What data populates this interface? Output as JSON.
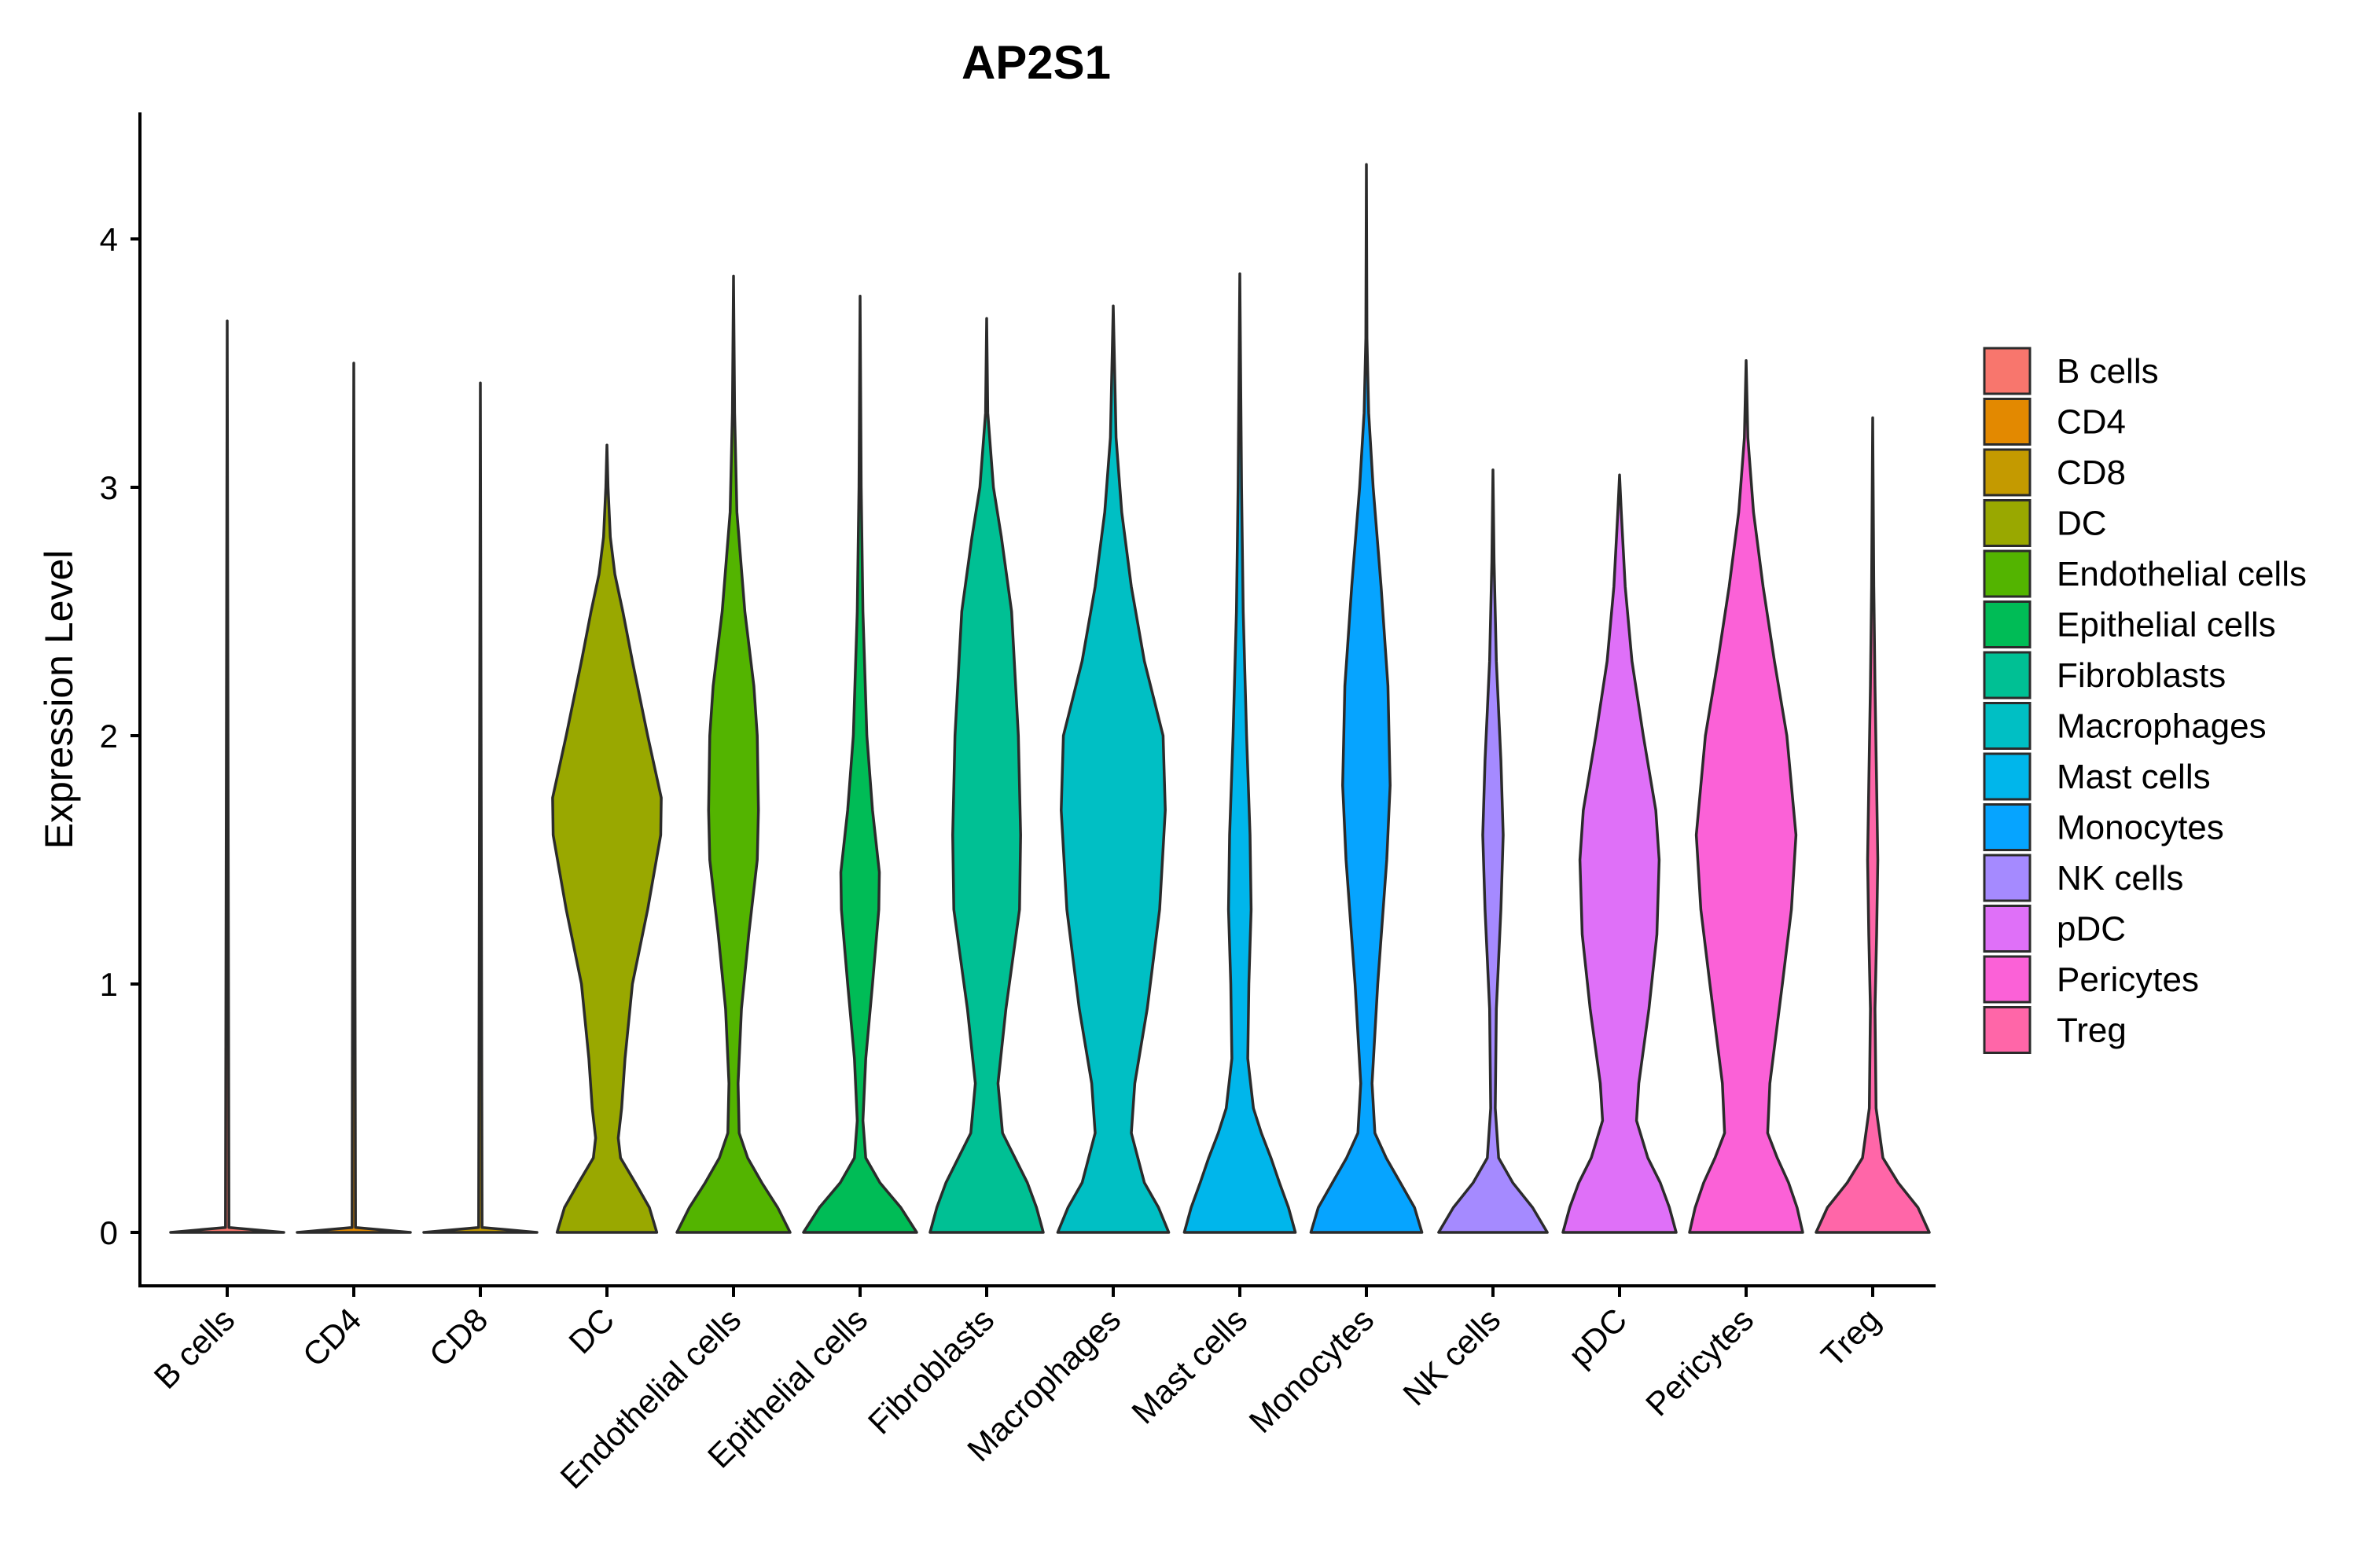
{
  "chart_data": {
    "type": "violin",
    "title": "AP2S1",
    "xlabel": "",
    "ylabel": "Expression Level",
    "ylim": [
      -0.21,
      4.5
    ],
    "yticks": [
      0,
      1,
      2,
      3,
      4
    ],
    "grid": false,
    "legend_position": "right",
    "categories": [
      "B cells",
      "CD4",
      "CD8",
      "DC",
      "Endothelial cells",
      "Epithelial cells",
      "Fibroblasts",
      "Macrophages",
      "Mast cells",
      "Monocytes",
      "NK cells",
      "pDC",
      "Pericytes",
      "Treg"
    ],
    "colors": [
      "#F8766D",
      "#E38900",
      "#C49A00",
      "#99A800",
      "#53B400",
      "#00BC56",
      "#00C094",
      "#00BFC4",
      "#00B6EB",
      "#06A4FF",
      "#A58AFF",
      "#DF70F8",
      "#FB61D7",
      "#FF66A8"
    ],
    "max_values": [
      3.67,
      3.5,
      3.42,
      3.17,
      3.85,
      3.77,
      3.68,
      3.73,
      3.86,
      4.3,
      3.07,
      3.05,
      3.51,
      3.28
    ],
    "density_profiles": [
      {
        "name": "B cells",
        "points": [
          [
            0,
            1.0
          ],
          [
            0.02,
            0.03
          ],
          [
            3.67,
            0.0
          ]
        ]
      },
      {
        "name": "CD4",
        "points": [
          [
            0,
            1.0
          ],
          [
            0.02,
            0.03
          ],
          [
            3.5,
            0.0
          ]
        ]
      },
      {
        "name": "CD8",
        "points": [
          [
            0,
            1.0
          ],
          [
            0.02,
            0.03
          ],
          [
            3.42,
            0.0
          ]
        ]
      },
      {
        "name": "DC",
        "points": [
          [
            0,
            0.88
          ],
          [
            0.1,
            0.75
          ],
          [
            0.2,
            0.5
          ],
          [
            0.3,
            0.24
          ],
          [
            0.38,
            0.2
          ],
          [
            0.5,
            0.26
          ],
          [
            0.7,
            0.32
          ],
          [
            1.0,
            0.45
          ],
          [
            1.3,
            0.72
          ],
          [
            1.6,
            0.95
          ],
          [
            1.75,
            0.96
          ],
          [
            2.0,
            0.72
          ],
          [
            2.3,
            0.45
          ],
          [
            2.5,
            0.28
          ],
          [
            2.65,
            0.14
          ],
          [
            2.8,
            0.06
          ],
          [
            3.0,
            0.02
          ],
          [
            3.17,
            0.0
          ]
        ]
      },
      {
        "name": "Endothelial cells",
        "points": [
          [
            0,
            1.0
          ],
          [
            0.1,
            0.78
          ],
          [
            0.2,
            0.5
          ],
          [
            0.3,
            0.25
          ],
          [
            0.4,
            0.1
          ],
          [
            0.6,
            0.08
          ],
          [
            0.9,
            0.14
          ],
          [
            1.2,
            0.27
          ],
          [
            1.5,
            0.42
          ],
          [
            1.7,
            0.44
          ],
          [
            2.0,
            0.42
          ],
          [
            2.2,
            0.36
          ],
          [
            2.5,
            0.2
          ],
          [
            2.9,
            0.06
          ],
          [
            3.3,
            0.02
          ],
          [
            3.85,
            0.0
          ]
        ]
      },
      {
        "name": "Epithelial cells",
        "points": [
          [
            0,
            1.0
          ],
          [
            0.1,
            0.72
          ],
          [
            0.2,
            0.35
          ],
          [
            0.3,
            0.1
          ],
          [
            0.45,
            0.05
          ],
          [
            0.7,
            0.1
          ],
          [
            1.0,
            0.22
          ],
          [
            1.3,
            0.33
          ],
          [
            1.45,
            0.34
          ],
          [
            1.7,
            0.22
          ],
          [
            2.0,
            0.12
          ],
          [
            2.5,
            0.05
          ],
          [
            3.0,
            0.02
          ],
          [
            3.77,
            0.0
          ]
        ]
      },
      {
        "name": "Fibroblasts",
        "points": [
          [
            0,
            1.0
          ],
          [
            0.1,
            0.88
          ],
          [
            0.2,
            0.72
          ],
          [
            0.3,
            0.5
          ],
          [
            0.4,
            0.28
          ],
          [
            0.6,
            0.2
          ],
          [
            0.9,
            0.34
          ],
          [
            1.3,
            0.58
          ],
          [
            1.6,
            0.6
          ],
          [
            2.0,
            0.56
          ],
          [
            2.5,
            0.44
          ],
          [
            2.8,
            0.26
          ],
          [
            3.0,
            0.12
          ],
          [
            3.3,
            0.02
          ],
          [
            3.68,
            0.0
          ]
        ]
      },
      {
        "name": "Macrophages",
        "points": [
          [
            0,
            0.98
          ],
          [
            0.1,
            0.8
          ],
          [
            0.2,
            0.55
          ],
          [
            0.4,
            0.32
          ],
          [
            0.6,
            0.38
          ],
          [
            0.9,
            0.6
          ],
          [
            1.3,
            0.82
          ],
          [
            1.7,
            0.92
          ],
          [
            2.0,
            0.88
          ],
          [
            2.3,
            0.55
          ],
          [
            2.6,
            0.32
          ],
          [
            2.9,
            0.15
          ],
          [
            3.2,
            0.05
          ],
          [
            3.73,
            0.0
          ]
        ]
      },
      {
        "name": "Mast cells",
        "points": [
          [
            0,
            0.98
          ],
          [
            0.1,
            0.86
          ],
          [
            0.2,
            0.7
          ],
          [
            0.3,
            0.55
          ],
          [
            0.4,
            0.38
          ],
          [
            0.5,
            0.24
          ],
          [
            0.7,
            0.14
          ],
          [
            1.0,
            0.16
          ],
          [
            1.3,
            0.2
          ],
          [
            1.6,
            0.18
          ],
          [
            2.0,
            0.12
          ],
          [
            2.5,
            0.06
          ],
          [
            3.0,
            0.03
          ],
          [
            3.86,
            0.0
          ]
        ]
      },
      {
        "name": "Monocytes",
        "points": [
          [
            0,
            0.98
          ],
          [
            0.1,
            0.85
          ],
          [
            0.2,
            0.6
          ],
          [
            0.3,
            0.35
          ],
          [
            0.4,
            0.15
          ],
          [
            0.6,
            0.1
          ],
          [
            1.0,
            0.2
          ],
          [
            1.5,
            0.36
          ],
          [
            1.8,
            0.42
          ],
          [
            2.2,
            0.38
          ],
          [
            2.6,
            0.26
          ],
          [
            3.0,
            0.12
          ],
          [
            3.3,
            0.04
          ],
          [
            3.6,
            0.01
          ],
          [
            4.3,
            0.0
          ]
        ]
      },
      {
        "name": "NK cells",
        "points": [
          [
            0,
            0.96
          ],
          [
            0.1,
            0.7
          ],
          [
            0.2,
            0.35
          ],
          [
            0.3,
            0.1
          ],
          [
            0.5,
            0.04
          ],
          [
            0.9,
            0.06
          ],
          [
            1.3,
            0.14
          ],
          [
            1.6,
            0.18
          ],
          [
            1.9,
            0.14
          ],
          [
            2.3,
            0.06
          ],
          [
            2.7,
            0.02
          ],
          [
            3.07,
            0.0
          ]
        ]
      },
      {
        "name": "pDC",
        "points": [
          [
            0,
            1.0
          ],
          [
            0.1,
            0.88
          ],
          [
            0.2,
            0.72
          ],
          [
            0.3,
            0.5
          ],
          [
            0.45,
            0.3
          ],
          [
            0.6,
            0.34
          ],
          [
            0.9,
            0.52
          ],
          [
            1.2,
            0.66
          ],
          [
            1.5,
            0.7
          ],
          [
            1.7,
            0.64
          ],
          [
            2.0,
            0.42
          ],
          [
            2.3,
            0.22
          ],
          [
            2.6,
            0.1
          ],
          [
            2.9,
            0.03
          ],
          [
            3.05,
            0.0
          ]
        ]
      },
      {
        "name": "Pericytes",
        "points": [
          [
            0,
            1.0
          ],
          [
            0.1,
            0.9
          ],
          [
            0.2,
            0.75
          ],
          [
            0.3,
            0.55
          ],
          [
            0.4,
            0.38
          ],
          [
            0.6,
            0.42
          ],
          [
            1.0,
            0.64
          ],
          [
            1.3,
            0.8
          ],
          [
            1.6,
            0.88
          ],
          [
            2.0,
            0.72
          ],
          [
            2.3,
            0.5
          ],
          [
            2.6,
            0.3
          ],
          [
            2.9,
            0.13
          ],
          [
            3.2,
            0.03
          ],
          [
            3.51,
            0.0
          ]
        ]
      },
      {
        "name": "Treg",
        "points": [
          [
            0,
            1.0
          ],
          [
            0.1,
            0.8
          ],
          [
            0.2,
            0.45
          ],
          [
            0.3,
            0.18
          ],
          [
            0.5,
            0.06
          ],
          [
            0.9,
            0.04
          ],
          [
            1.2,
            0.07
          ],
          [
            1.5,
            0.09
          ],
          [
            1.8,
            0.07
          ],
          [
            2.2,
            0.04
          ],
          [
            2.6,
            0.02
          ],
          [
            3.28,
            0.0
          ]
        ]
      }
    ]
  },
  "legend": {
    "items": [
      "B cells",
      "CD4",
      "CD8",
      "DC",
      "Endothelial cells",
      "Epithelial cells",
      "Fibroblasts",
      "Macrophages",
      "Mast cells",
      "Monocytes",
      "NK cells",
      "pDC",
      "Pericytes",
      "Treg"
    ]
  }
}
